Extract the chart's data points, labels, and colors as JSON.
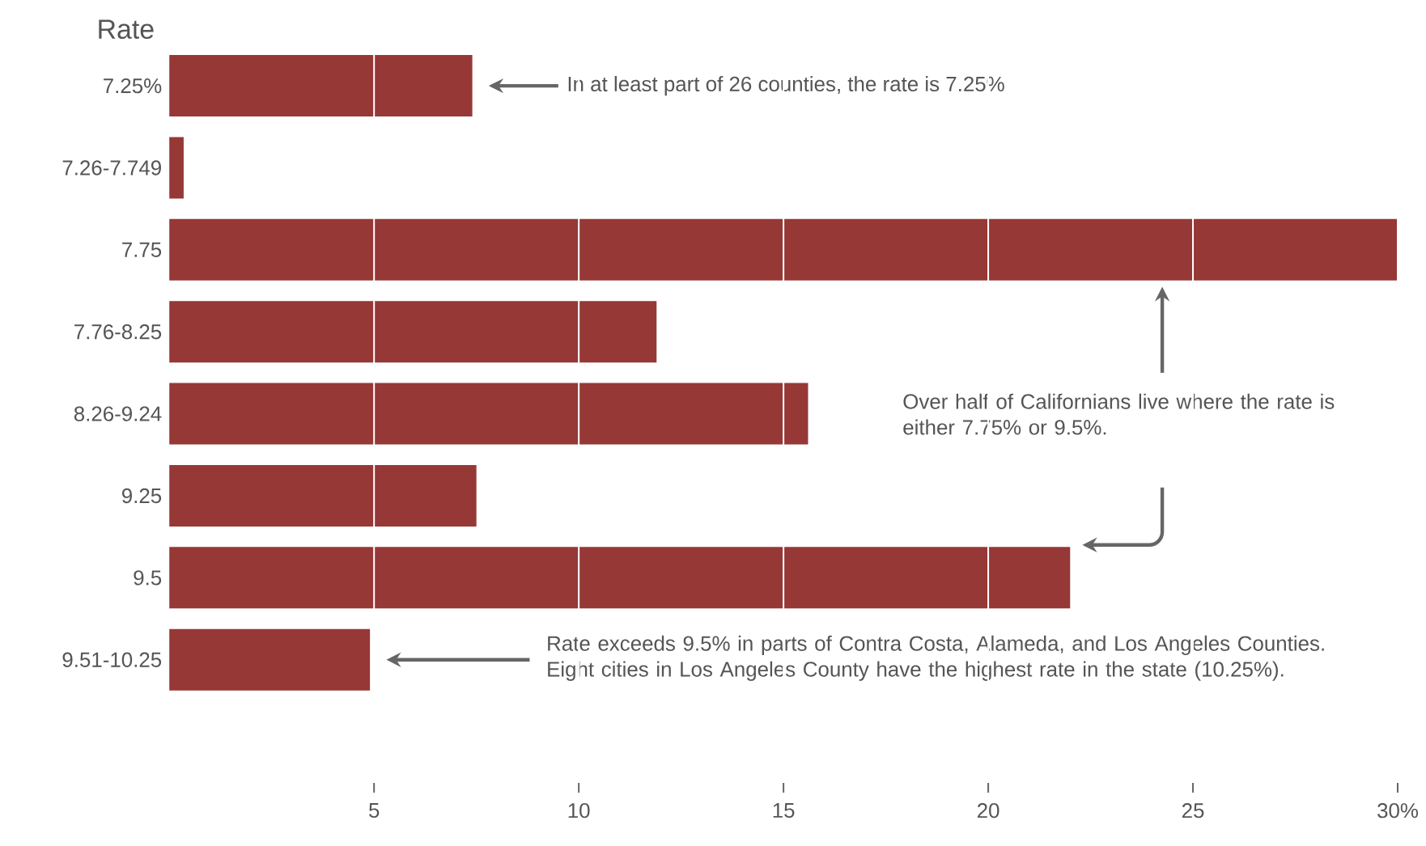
{
  "chart_data": {
    "type": "bar",
    "orientation": "horizontal",
    "ylabel": "Rate",
    "categories": [
      "7.25%",
      "7.26-7.749",
      "7.75",
      "7.76-8.25",
      "8.26-9.24",
      "9.25",
      "9.5",
      "9.51-10.25"
    ],
    "values": [
      7.4,
      0.35,
      30.0,
      11.9,
      15.6,
      7.5,
      22.0,
      4.9
    ],
    "color": "#963836",
    "xlim": [
      0,
      30
    ],
    "xticks": [
      5,
      10,
      15,
      20,
      25,
      {
        "value": 30,
        "label": "30%"
      }
    ],
    "grid": "x",
    "annotations": [
      "In at least part of 26 counties, the rate is 7.25%",
      "Over half of Californians live where the rate is either 7.75% or 9.5%.",
      "Rate exceeds 9.5% in parts of Contra Costa, Alameda, and Los Angeles Counties. Eight cities in Los Angeles County have the highest rate in the state (10.25%)."
    ]
  }
}
